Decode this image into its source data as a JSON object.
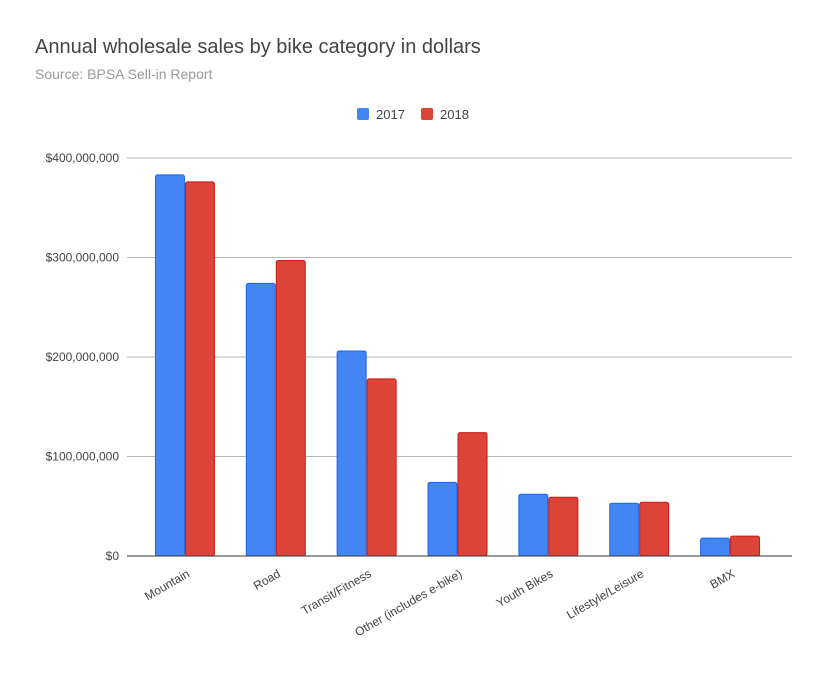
{
  "chart_data": {
    "type": "bar",
    "title": "Annual wholesale sales by bike category in dollars",
    "subtitle": "Source: BPSA Sell-in Report",
    "categories": [
      "Mountain",
      "Road",
      "Transit/Fitness",
      "Other (includes e-bike)",
      "Youth Bikes",
      "Lifestyle/Leisure",
      "BMX"
    ],
    "series": [
      {
        "name": "2017",
        "color": "#4285f4",
        "values": [
          383000000,
          274000000,
          206000000,
          74000000,
          62000000,
          53000000,
          18000000
        ]
      },
      {
        "name": "2018",
        "color": "#db4437",
        "values": [
          376000000,
          297000000,
          178000000,
          124000000,
          59000000,
          54000000,
          20000000
        ]
      }
    ],
    "ylim": [
      0,
      400000000
    ],
    "yticks": [
      0,
      100000000,
      200000000,
      300000000,
      400000000
    ],
    "ytick_labels": [
      "$0",
      "$100,000,000",
      "$200,000,000",
      "$300,000,000",
      "$400,000,000"
    ],
    "xlabel": "",
    "ylabel": "",
    "grid": true,
    "legend": "top"
  }
}
